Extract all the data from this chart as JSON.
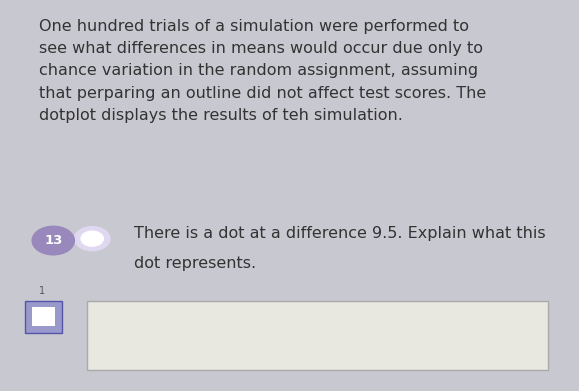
{
  "background_color": "#c8c8d0",
  "card_background": "#e8e8e0",
  "paragraph_text": "One hundred trials of a simulation were performed to\nsee what differences in means would occur due only to\nchance variation in the random assignment, assuming\nthat perparing an outline did not affect test scores. The\ndotplot displays the results of teh simulation.",
  "question_number": "13",
  "question_number_bg": "#9988bb",
  "question_number_text_color": "#ffffff",
  "dot_color": "#ffffff",
  "dot_glow": "#e0d8f0",
  "question_text_line1": "There is a dot at a difference 9.5. Explain what this",
  "question_text_line2": "dot represents.",
  "answer_box_bg": "#e8e8e0",
  "answer_box_border": "#aaaaaa",
  "small_number": "1",
  "small_icon_color": "#5555aa",
  "small_icon_bg": "#9999cc",
  "para_fontsize": 11.5,
  "question_fontsize": 11.5,
  "number_fontsize": 9.5
}
